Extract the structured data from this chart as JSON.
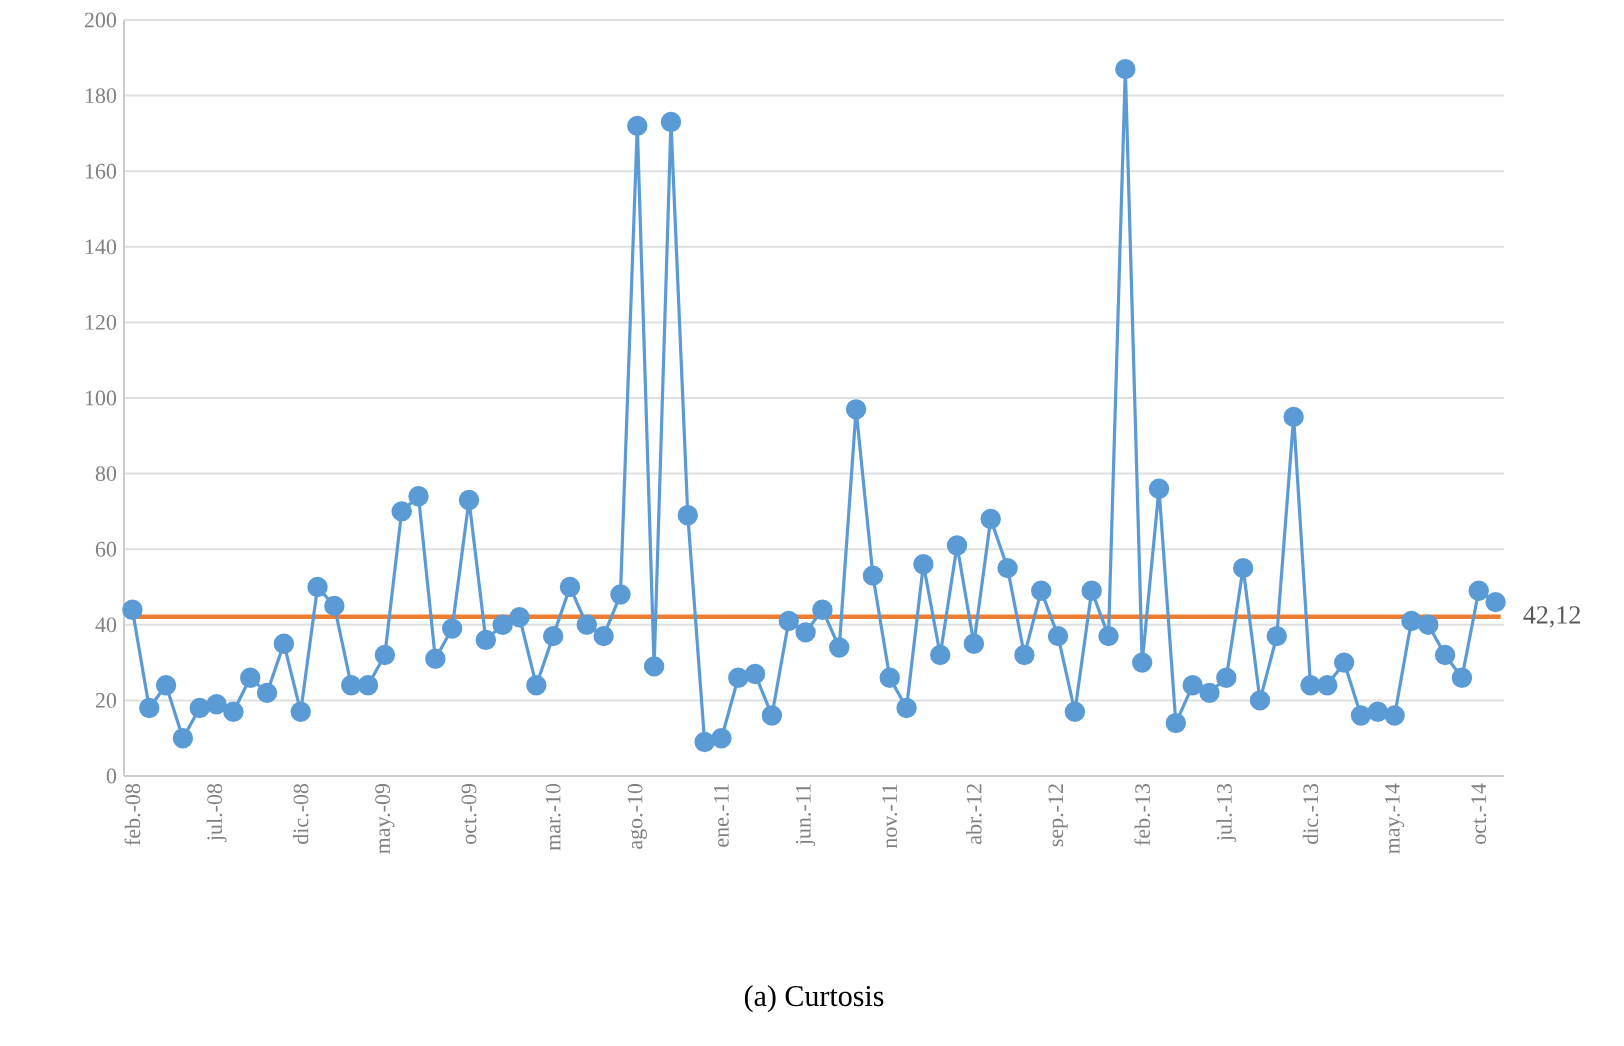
{
  "chart_data": {
    "type": "line",
    "categories": [
      "feb.-08",
      null,
      null,
      null,
      null,
      "jul.-08",
      null,
      null,
      null,
      null,
      "dic.-08",
      null,
      null,
      null,
      null,
      "may.-09",
      null,
      null,
      null,
      null,
      "oct.-09",
      null,
      null,
      null,
      null,
      "mar.-10",
      null,
      null,
      null,
      null,
      "ago.-10",
      null,
      null,
      null,
      null,
      "ene.-11",
      null,
      null,
      null,
      null,
      "jun.-11",
      null,
      null,
      null,
      null,
      "nov.-11",
      null,
      null,
      null,
      null,
      "abr.-12",
      null,
      null,
      null,
      null,
      "sep.-12",
      null,
      null,
      null,
      null,
      "feb.-13",
      null,
      null,
      null,
      null,
      "jul.-13",
      null,
      null,
      null,
      null,
      "dic.-13",
      null,
      null,
      null,
      null,
      "may.-14",
      null,
      null,
      null,
      null,
      "oct.-14",
      null
    ],
    "series": [
      {
        "color": "#5b9bd5",
        "values": [
          44,
          18,
          24,
          10,
          18,
          19,
          17,
          26,
          22,
          35,
          17,
          50,
          45,
          24,
          24,
          32,
          70,
          74,
          31,
          39,
          73,
          36,
          40,
          42,
          24,
          37,
          50,
          40,
          37,
          48,
          172,
          29,
          173,
          69,
          9,
          10,
          26,
          27,
          16,
          41,
          38,
          44,
          34,
          97,
          53,
          26,
          18,
          56,
          32,
          61,
          35,
          68,
          55,
          32,
          49,
          37,
          17,
          49,
          37,
          187,
          30,
          76,
          14,
          24,
          22,
          26,
          55,
          20,
          37,
          95,
          24,
          24,
          30,
          16,
          17,
          16,
          41,
          40,
          32,
          26,
          49,
          46
        ]
      }
    ],
    "ylim": [
      0,
      200
    ],
    "yticks": [
      0,
      20,
      40,
      60,
      80,
      100,
      120,
      140,
      160,
      180,
      200
    ],
    "grid": "y",
    "marker": "circle",
    "line_style": "solid",
    "ref_lines": [
      {
        "axis": "y",
        "value": 42.12,
        "label": "42,12",
        "color": "#ed7d31"
      }
    ],
    "annotations": [
      "(a) Curtosis"
    ]
  }
}
